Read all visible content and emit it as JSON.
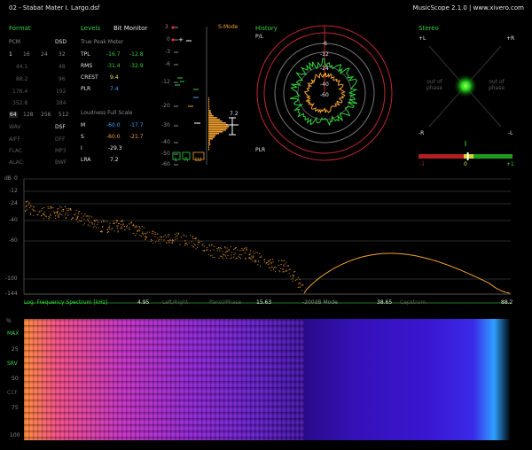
{
  "header": {
    "title": "02 - Stabat Mater I. Largo.dsf",
    "app": "MusicScope 2.1.0 | www.xivero.com"
  },
  "format": {
    "heading": "Format",
    "pcm_label": "PCM",
    "dsd_label": "DSD",
    "bits": [
      "1",
      "16",
      "24",
      "32"
    ],
    "rates": [
      {
        "pcm": "44.1",
        "dsd": "48"
      },
      {
        "pcm": "88.2",
        "dsd": "96"
      },
      {
        "pcm": "176.4",
        "dsd": "192"
      },
      {
        "pcm": "352.8",
        "dsd": "384"
      }
    ],
    "dsd_rates": [
      "64",
      "128",
      "256",
      "512"
    ],
    "types": [
      {
        "a": "WAV",
        "b": "DSF"
      },
      {
        "a": "AIFF",
        "b": "DFF"
      },
      {
        "a": "FLAC",
        "b": "MP3"
      },
      {
        "a": "ALAC",
        "b": "BWF"
      }
    ]
  },
  "levels": {
    "heading": "Levels",
    "bit_monitor": "Bit Monitor",
    "true_peak_heading": "True Peak Meter",
    "rows": [
      {
        "label": "TPL",
        "l": "-16.7",
        "r": "-12.8"
      },
      {
        "label": "RMS",
        "l": "-31.4",
        "r": "-32.9"
      },
      {
        "label": "CREST",
        "l": "9.4",
        "r": ""
      },
      {
        "label": "PLR",
        "l": "7.4",
        "r": ""
      }
    ],
    "loudness_heading": "Loudness Full Scale",
    "loudness": [
      {
        "label": "M",
        "a": "-60.0",
        "b": "-17.7"
      },
      {
        "label": "S",
        "a": "-60.0",
        "b": "-21.7"
      },
      {
        "label": "I",
        "a": "-29.3",
        "b": ""
      },
      {
        "label": "LRA",
        "a": "7.2",
        "b": ""
      }
    ]
  },
  "meter": {
    "smode_label": "S-Mode",
    "scale": [
      "3",
      "0",
      "-3",
      "-6",
      "-12",
      "-20",
      "-30",
      "-40",
      "-50",
      "-60"
    ],
    "value_label": "7.2",
    "channels": [
      "L",
      "R",
      "LU"
    ]
  },
  "history": {
    "heading": "History",
    "pl_label": "P/L",
    "plr_label": "PLR",
    "ring_labels": [
      "-6",
      "-12",
      "-24",
      "-40",
      "-60"
    ]
  },
  "stereo": {
    "heading": "Stereo",
    "plus_l": "+L",
    "plus_r": "+R",
    "minus_r": "-R",
    "minus_l": "-L",
    "out_of_phase": "out of phase",
    "corr_labels": [
      "-1",
      "0",
      "+1"
    ],
    "correlation": 0.05
  },
  "spectrum": {
    "db_label": "dB",
    "y_ticks": [
      "0",
      "-12",
      "-24",
      "-40",
      "-60",
      "-100",
      "-144"
    ],
    "x_ticks": [
      "4.95",
      "15.63",
      "38.65",
      "88.2"
    ],
    "bottom_labels": {
      "log_freq": "Log. Frequency Spectrum [kHz]",
      "left_right": "Left/Right",
      "panorama": "Panol/Phase",
      "mode": "-200dB Mode",
      "cepstrum": "Cepstrum"
    }
  },
  "spectrogram": {
    "y_labels": [
      "%",
      "MAX",
      "25",
      "SRV",
      "50",
      "CCF",
      "75",
      "100"
    ]
  },
  "colors": {
    "accent_green": "#2fd23c",
    "orange": "#f0a030",
    "history_ring": "#c1272d",
    "blue": "#3aa7ff"
  }
}
